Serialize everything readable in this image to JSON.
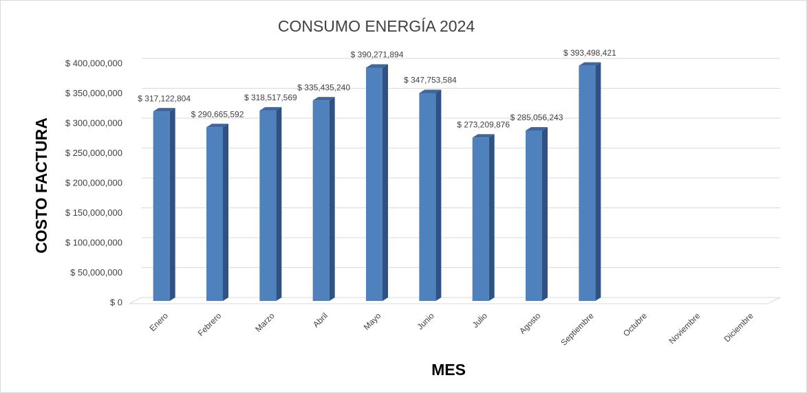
{
  "chart_data": {
    "type": "bar",
    "title": "CONSUMO ENERGÍA 2024",
    "x_label": "MES",
    "y_label": "COSTO FACTURA",
    "categories": [
      "Enero",
      "Febrero",
      "Marzo",
      "Abril",
      "Mayo",
      "Junio",
      "Julio",
      "Agosto",
      "Septiembre",
      "Octubre",
      "Noviembre",
      "Diciembre"
    ],
    "values": [
      317122804,
      290665592,
      318517569,
      335435240,
      390271894,
      347753584,
      273209876,
      285056243,
      393498421,
      null,
      null,
      null
    ],
    "value_labels": [
      "$ 317,122,804",
      "$ 290,665,592",
      "$ 318,517,569",
      "$ 335,435,240",
      "$ 390,271,894",
      "$ 347,753,584",
      "$ 273,209,876",
      "$ 285,056,243",
      "$ 393,498,421",
      null,
      null,
      null
    ],
    "color": "#4f81bd",
    "ylim": [
      0,
      400000000
    ],
    "yticks": [
      {
        "value": 0,
        "label": "$ 0"
      },
      {
        "value": 50000000,
        "label": "$ 50,000,000"
      },
      {
        "value": 100000000,
        "label": "$ 100,000,000"
      },
      {
        "value": 150000000,
        "label": "$ 150,000,000"
      },
      {
        "value": 200000000,
        "label": "$ 200,000,000"
      },
      {
        "value": 250000000,
        "label": "$ 250,000,000"
      },
      {
        "value": 300000000,
        "label": "$ 300,000,000"
      },
      {
        "value": 350000000,
        "label": "$ 350,000,000"
      },
      {
        "value": 400000000,
        "label": "$ 400,000,000"
      }
    ],
    "grid": true
  }
}
